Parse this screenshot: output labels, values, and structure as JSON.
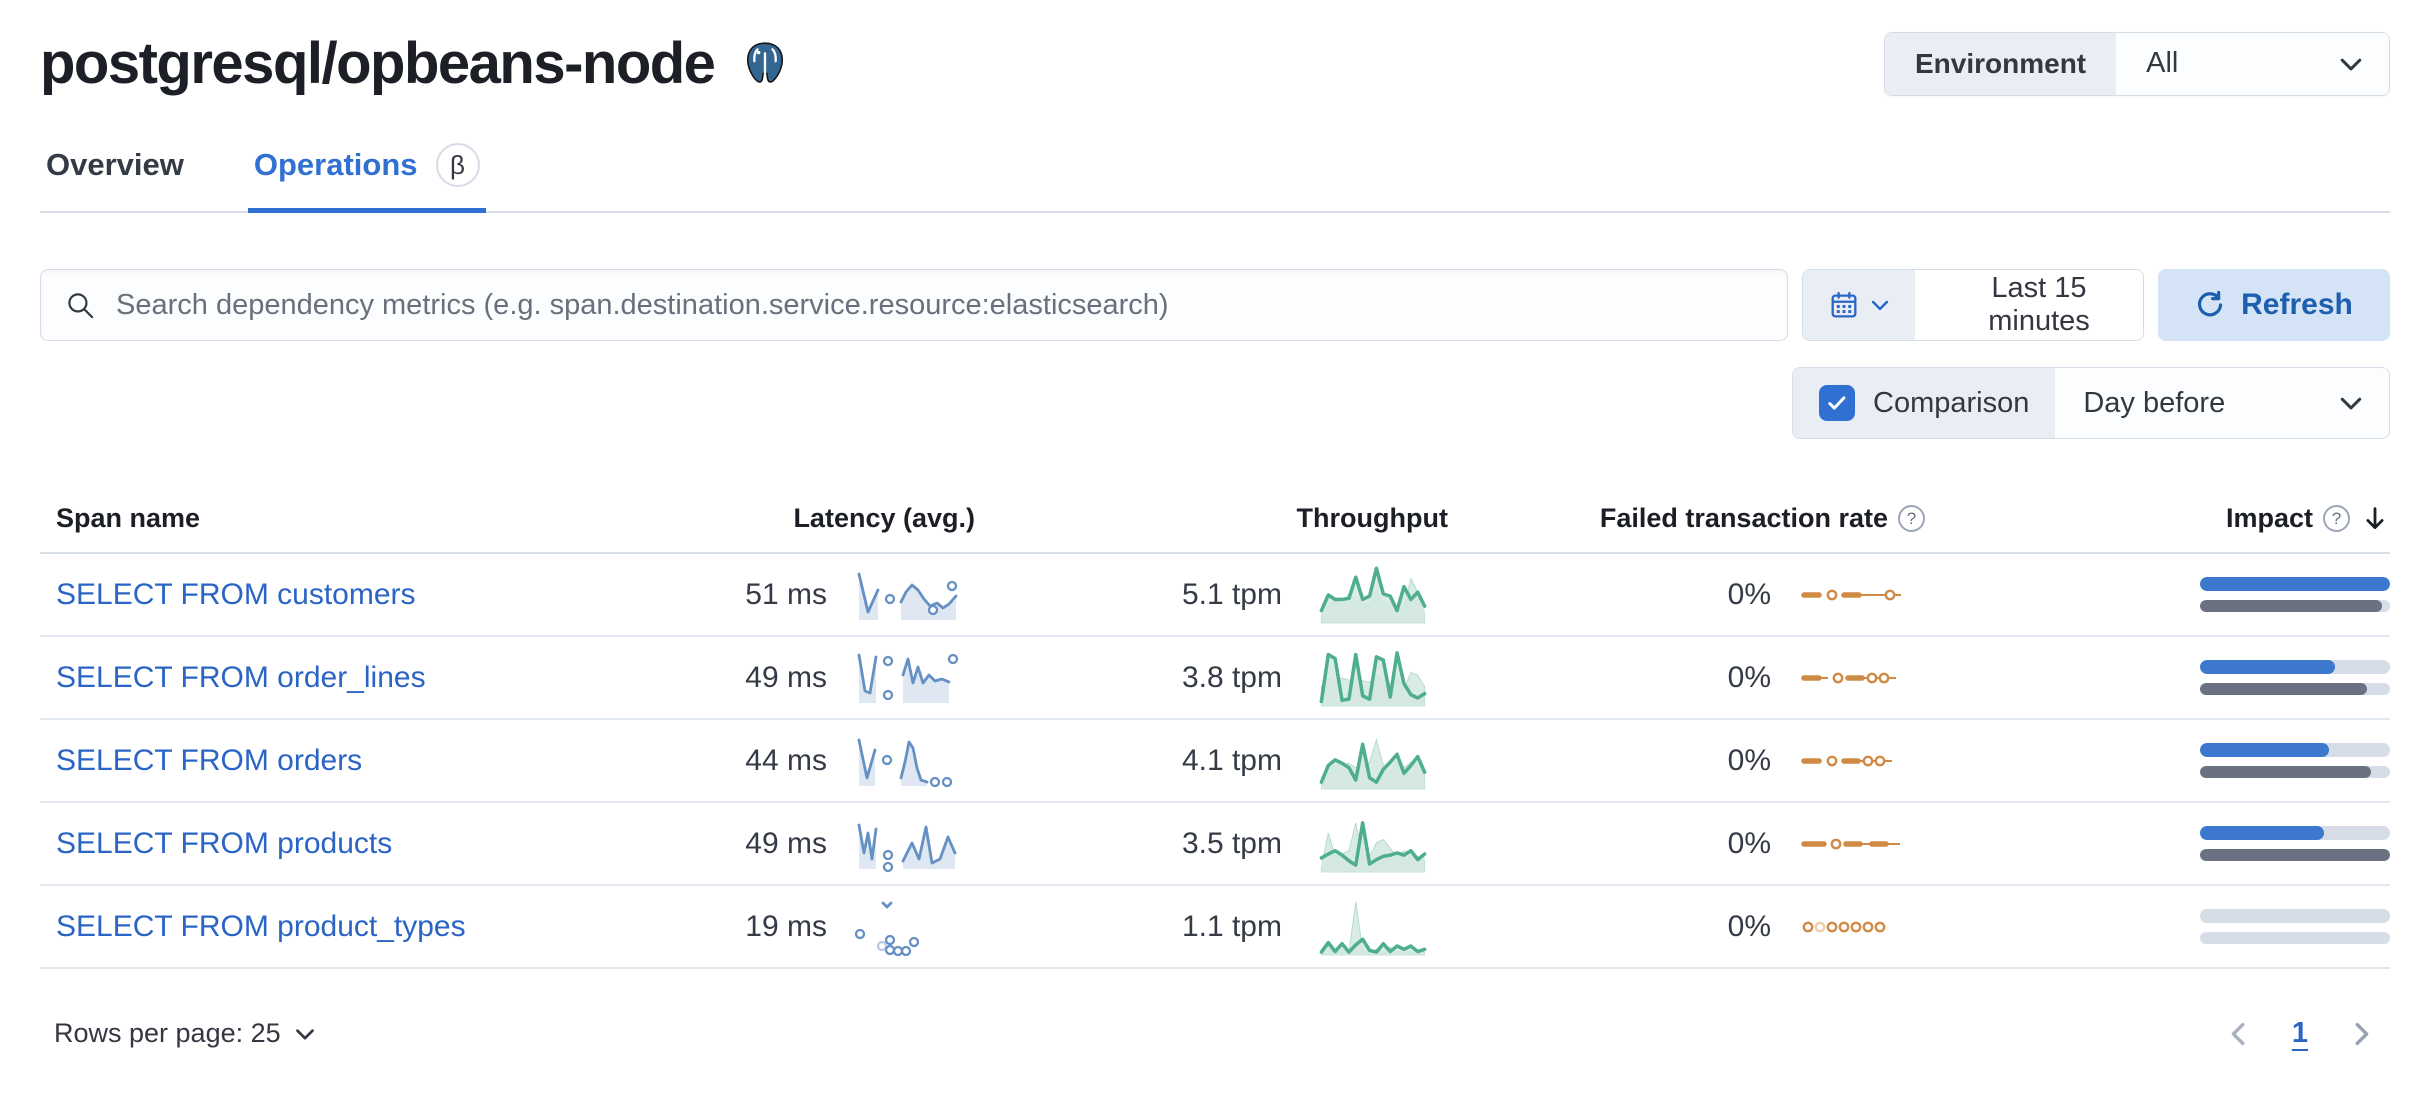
{
  "page": {
    "title": "postgresql/opbeans-node"
  },
  "env_filter": {
    "label": "Environment",
    "value": "All"
  },
  "tabs": [
    {
      "label": "Overview",
      "active": false
    },
    {
      "label": "Operations",
      "active": true,
      "badge": "β"
    }
  ],
  "search": {
    "placeholder": "Search dependency metrics (e.g. span.destination.service.resource:elasticsearch)"
  },
  "time_picker": {
    "value": "Last 15 minutes"
  },
  "refresh": {
    "label": "Refresh"
  },
  "comparison": {
    "label": "Comparison",
    "value": "Day before",
    "checked": true
  },
  "table": {
    "columns": [
      "Span name",
      "Latency (avg.)",
      "Throughput",
      "Failed transaction rate",
      "Impact"
    ],
    "sorted_by": "Impact",
    "sort_direction": "desc",
    "rows": [
      {
        "name": "SELECT FROM customers",
        "latency": "51 ms",
        "throughput": "5.1 tpm",
        "failed_rate": "0%",
        "impact": {
          "current": 100,
          "previous": 96
        },
        "latency_spark": {
          "segments": [
            {
              "p": [
                [
                  2,
                  8
                ],
                [
                  11,
                  46
                ],
                [
                  21,
                  24
                ]
              ]
            },
            {
              "p": [
                [
                  44,
                  36
                ],
                [
                  49,
                  26
                ],
                [
                  55,
                  19
                ],
                [
                  61,
                  24
                ],
                [
                  67,
                  33
                ],
                [
                  73,
                  40
                ],
                [
                  80,
                  37
                ],
                [
                  86,
                  42
                ],
                [
                  92,
                  38
                ],
                [
                  99,
                  30
                ]
              ]
            }
          ],
          "dots": [
            [
              33,
              33
            ],
            [
              76,
              44
            ],
            [
              95,
              20
            ]
          ]
        },
        "throughput_spark": {
          "current": [
            22,
            50,
            42,
            42,
            44,
            82,
            42,
            48,
            98,
            52,
            48,
            22,
            65,
            42,
            55,
            30
          ],
          "previous": [
            14,
            30,
            44,
            30,
            52,
            40,
            34,
            30,
            58,
            34,
            38,
            28,
            24,
            80,
            55,
            16
          ]
        },
        "failed_spark": [
          [
            "d",
            0,
            15
          ],
          [
            "o",
            28
          ],
          [
            "d",
            40,
            55
          ],
          [
            "l",
            55,
            83
          ],
          [
            "o",
            86
          ],
          [
            "l",
            90,
            97
          ]
        ]
      },
      {
        "name": "SELECT FROM order_lines",
        "latency": "49 ms",
        "throughput": "3.8 tpm",
        "failed_rate": "0%",
        "impact": {
          "current": 71,
          "previous": 88
        },
        "latency_spark": {
          "segments": [
            {
              "p": [
                [
                  2,
                  6
                ],
                [
                  8,
                  42
                ],
                [
                  13,
                  44
                ],
                [
                  19,
                  8
                ]
              ]
            },
            {
              "p": [
                [
                  46,
                  26
                ],
                [
                  51,
                  10
                ],
                [
                  56,
                  34
                ],
                [
                  61,
                  18
                ],
                [
                  66,
                  34
                ],
                [
                  72,
                  26
                ],
                [
                  78,
                  32
                ],
                [
                  85,
                  30
                ],
                [
                  92,
                  33
                ]
              ]
            }
          ],
          "dots": [
            [
              31,
              12
            ],
            [
              31,
              46
            ],
            [
              96,
              10
            ]
          ]
        },
        "throughput_spark": {
          "current": [
            8,
            92,
            85,
            10,
            12,
            92,
            18,
            12,
            88,
            82,
            16,
            95,
            40,
            20,
            14,
            22
          ],
          "previous": [
            35,
            50,
            42,
            50,
            46,
            50,
            45,
            42,
            55,
            45,
            40,
            50,
            30,
            60,
            55,
            35
          ]
        },
        "failed_spark": [
          [
            "d",
            0,
            15
          ],
          [
            "l",
            15,
            24
          ],
          [
            "o",
            34
          ],
          [
            "d",
            44,
            58
          ],
          [
            "l",
            58,
            64
          ],
          [
            "o",
            68
          ],
          [
            "l",
            72,
            76
          ],
          [
            "o",
            80
          ],
          [
            "l",
            84,
            92
          ]
        ]
      },
      {
        "name": "SELECT FROM orders",
        "latency": "44 ms",
        "throughput": "4.1 tpm",
        "failed_rate": "0%",
        "impact": {
          "current": 68,
          "previous": 90
        },
        "latency_spark": {
          "segments": [
            {
              "p": [
                [
                  2,
                  8
                ],
                [
                  10,
                  46
                ],
                [
                  18,
                  18
                ]
              ]
            },
            {
              "p": [
                [
                  44,
                  46
                ],
                [
                  48,
                  30
                ],
                [
                  52,
                  10
                ],
                [
                  56,
                  16
                ],
                [
                  60,
                  36
                ],
                [
                  64,
                  48
                ],
                [
                  70,
                  50
                ]
              ]
            }
          ],
          "dots": [
            [
              30,
              28
            ],
            [
              78,
              50
            ],
            [
              90,
              50
            ]
          ]
        },
        "throughput_spark": {
          "current": [
            12,
            42,
            52,
            46,
            38,
            16,
            80,
            20,
            12,
            35,
            48,
            62,
            28,
            42,
            58,
            30
          ],
          "previous": [
            12,
            38,
            48,
            42,
            46,
            38,
            42,
            48,
            88,
            42,
            28,
            55,
            38,
            48,
            42,
            35
          ]
        },
        "failed_spark": [
          [
            "d",
            0,
            15
          ],
          [
            "o",
            28
          ],
          [
            "d",
            40,
            54
          ],
          [
            "l",
            54,
            60
          ],
          [
            "o",
            64
          ],
          [
            "l",
            68,
            72
          ],
          [
            "o",
            76
          ],
          [
            "l",
            80,
            88
          ]
        ]
      },
      {
        "name": "SELECT FROM products",
        "latency": "49 ms",
        "throughput": "3.5 tpm",
        "failed_rate": "0%",
        "impact": {
          "current": 65,
          "previous": 100
        },
        "latency_spark": {
          "segments": [
            {
              "p": [
                [
                  2,
                  10
                ],
                [
                  7,
                  38
                ],
                [
                  11,
                  18
                ],
                [
                  15,
                  44
                ],
                [
                  19,
                  14
                ]
              ]
            },
            {
              "p": [
                [
                  46,
                  46
                ],
                [
                  55,
                  28
                ],
                [
                  62,
                  44
                ],
                [
                  69,
                  12
                ],
                [
                  75,
                  48
                ],
                [
                  83,
                  44
                ],
                [
                  91,
                  22
                ],
                [
                  98,
                  38
                ]
              ]
            }
          ],
          "dots": [
            [
              31,
              40
            ],
            [
              31,
              52
            ]
          ]
        },
        "throughput_spark": {
          "current": [
            25,
            32,
            38,
            30,
            20,
            12,
            88,
            14,
            22,
            28,
            30,
            34,
            30,
            38,
            22,
            32
          ],
          "previous": [
            8,
            70,
            28,
            32,
            38,
            88,
            32,
            28,
            52,
            58,
            42,
            28,
            38,
            32,
            28,
            20
          ]
        },
        "failed_spark": [
          [
            "d",
            0,
            20
          ],
          [
            "o",
            32
          ],
          [
            "d",
            42,
            56
          ],
          [
            "l",
            56,
            68
          ],
          [
            "d",
            68,
            82
          ],
          [
            "l",
            82,
            96
          ]
        ]
      },
      {
        "name": "SELECT FROM product_types",
        "latency": "19 ms",
        "throughput": "1.1 tpm",
        "failed_rate": "0%",
        "impact": {
          "current": 0,
          "previous": 0
        },
        "latency_spark": {
          "segments": [
            {
              "p": [
                [
                  26,
                  5
                ],
                [
                  30,
                  9
                ],
                [
                  34,
                  5
                ]
              ],
              "fill": false
            }
          ],
          "dots": [
            [
              3,
              36
            ],
            [
              25,
              48,
              1
            ],
            [
              33,
              42
            ],
            [
              33,
              52
            ],
            [
              41,
              53
            ],
            [
              49,
              53
            ],
            [
              57,
              44
            ]
          ]
        },
        "throughput_spark": {
          "current": [
            5,
            22,
            6,
            20,
            5,
            18,
            28,
            8,
            5,
            20,
            6,
            16,
            10,
            16,
            6,
            10
          ],
          "previous": [
            4,
            14,
            4,
            10,
            4,
            95,
            8,
            4,
            10,
            4,
            14,
            4,
            10,
            4,
            6,
            4
          ]
        },
        "failed_spark": [
          [
            "o",
            4
          ],
          [
            "O",
            16
          ],
          [
            "o",
            28
          ],
          [
            "o",
            40
          ],
          [
            "o",
            52
          ],
          [
            "o",
            64
          ],
          [
            "o",
            76
          ]
        ]
      }
    ]
  },
  "footer": {
    "rows_per_page": "Rows per page: 25",
    "page_number": "1"
  },
  "icons": {
    "postgresql-icon": "elephant-logo",
    "search-icon": "magnifier",
    "calendar-icon": "calendar",
    "chevron-down-icon": "chevron-down",
    "refresh-icon": "circular-arrow",
    "check-icon": "checkmark",
    "help-icon": "question-mark-circle",
    "sort-desc-icon": "arrow-down",
    "chevron-left-icon": "chevron-left",
    "chevron-right-icon": "chevron-right"
  },
  "colors": {
    "primary": "#3170d3",
    "link": "#2a64c5",
    "refresh_bg": "#d4e3f5",
    "refresh_text": "#1d5fae",
    "border": "#d6dce7",
    "prepend_bg": "#e9eef5",
    "heading": "#1c1f26",
    "text": "#353b46",
    "subdued": "#69707d",
    "latency_line": "#6590c3",
    "latency_fill": "#dee7f2",
    "latency_light": "#b9cbe4",
    "throughput_line": "#4fae92",
    "throughput_prev_fill": "#d9ece4",
    "throughput_prev_line": "#b7dccd",
    "throughput_cur_fill": "#d3e9df",
    "failed": "#cf8b45",
    "failed_light": "#ead0ae",
    "impact_current": "#3c78cd",
    "impact_previous": "#6a7180",
    "impact_track": "#d6dde8"
  }
}
